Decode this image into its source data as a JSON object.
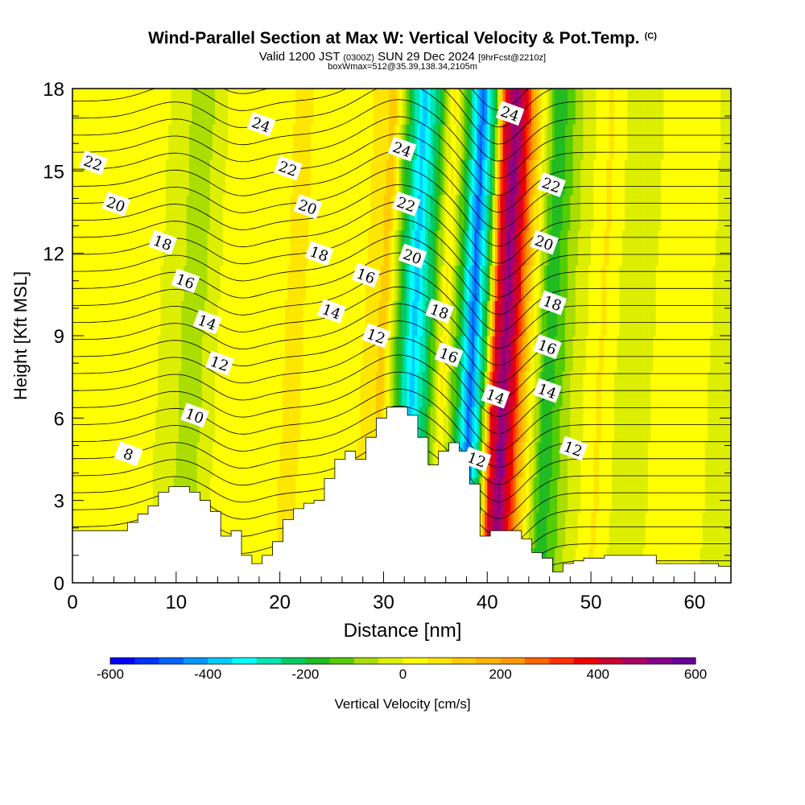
{
  "header": {
    "title": "Wind-Parallel Section at Max W: Vertical Velocity & Pot.Temp.",
    "title_mark": "(C)",
    "valid_prefix": "Valid 1200 JST",
    "valid_zulu": "(0300Z)",
    "valid_date": "SUN 29 Dec 2024",
    "valid_fcst": "[9hrFcst@2210z]",
    "box_info": "boxWmax=512@35.39,138.34,2105m"
  },
  "chart_data": {
    "type": "heatmap",
    "xlabel": "Distance [nm]",
    "ylabel": "Height [Kft MSL]",
    "xlim": [
      0,
      63.5
    ],
    "ylim": [
      0,
      18
    ],
    "x_ticks": [
      "0",
      "10",
      "20",
      "30",
      "40",
      "50",
      "60"
    ],
    "x_tick_values": [
      0,
      10,
      20,
      30,
      40,
      50,
      60
    ],
    "y_ticks": [
      "0",
      "3",
      "6",
      "9",
      "12",
      "15",
      "18"
    ],
    "y_tick_values": [
      0,
      3,
      6,
      9,
      12,
      15,
      18
    ],
    "colorbar": {
      "label": "Vertical Velocity [cm/s]",
      "min": -600,
      "max": 600,
      "tick_labels": [
        "-600",
        "-400",
        "-200",
        "0",
        "200",
        "400",
        "600"
      ],
      "tick_values": [
        -600,
        -400,
        -200,
        0,
        200,
        400,
        600
      ],
      "colors": [
        "#0000ff",
        "#0033ff",
        "#0066ff",
        "#0099ff",
        "#00ccff",
        "#00ffff",
        "#00e5b3",
        "#00cc66",
        "#22bb22",
        "#55cc00",
        "#aadd00",
        "#ddee00",
        "#ffff00",
        "#ffe600",
        "#ffcc00",
        "#ffb300",
        "#ff9900",
        "#ff6600",
        "#ff3300",
        "#ee0000",
        "#cc0033",
        "#aa0066",
        "#880088",
        "#660099"
      ]
    },
    "vertical_velocity_bands": [
      {
        "x": 2,
        "w": 0
      },
      {
        "x": 6.5,
        "w": 30
      },
      {
        "x": 11.2,
        "w": -80
      },
      {
        "x": 14,
        "w": 20
      },
      {
        "x": 17,
        "w": 0
      },
      {
        "x": 20.5,
        "w": 60
      },
      {
        "x": 24,
        "w": 30
      },
      {
        "x": 27.5,
        "w": 50
      },
      {
        "x": 29.5,
        "w": 120
      },
      {
        "x": 30.8,
        "w": -150
      },
      {
        "x": 32.3,
        "w": -380
      },
      {
        "x": 33.8,
        "w": -200
      },
      {
        "x": 35.3,
        "w": 60
      },
      {
        "x": 36.8,
        "w": -200
      },
      {
        "x": 38,
        "w": -480
      },
      {
        "x": 39.3,
        "w": -150
      },
      {
        "x": 40.2,
        "w": 380
      },
      {
        "x": 41.2,
        "w": 520
      },
      {
        "x": 42.2,
        "w": 380
      },
      {
        "x": 43.3,
        "w": 120
      },
      {
        "x": 45.3,
        "w": -200
      },
      {
        "x": 47.5,
        "w": -60
      },
      {
        "x": 50.5,
        "w": 60
      },
      {
        "x": 53,
        "w": -40
      },
      {
        "x": 55.5,
        "w": 0
      },
      {
        "x": 58,
        "w": 30
      },
      {
        "x": 61,
        "w": 0
      },
      {
        "x": 63.5,
        "w": -20
      }
    ],
    "terrain": {
      "x": [
        0,
        5.3,
        6.3,
        7.3,
        8.3,
        9.3,
        10.3,
        11.3,
        12.3,
        13.3,
        14.3,
        15.3,
        16.3,
        17.3,
        18.3,
        19.3,
        20.3,
        21.3,
        22.3,
        23.3,
        24.3,
        25.3,
        26.3,
        27.3,
        28.3,
        29.3,
        30.3,
        31.3,
        32.3,
        33.3,
        34.3,
        35.3,
        36.3,
        37.3,
        38.3,
        39.3,
        40.3,
        41.3,
        42.3,
        43.3,
        44.3,
        45.3,
        46.3,
        47.3,
        48.3,
        49.3,
        50.3,
        51.3,
        52.3,
        53.3,
        54.3,
        55.3,
        56.3,
        57.3,
        58.3,
        59.3,
        60.3,
        61.3,
        62.3,
        63.5
      ],
      "h": [
        1.9,
        2.2,
        2.5,
        2.8,
        3.3,
        3.5,
        3.5,
        3.3,
        3.0,
        2.6,
        1.7,
        1.9,
        1.0,
        0.7,
        1.0,
        1.5,
        2.3,
        2.7,
        2.9,
        3.0,
        3.8,
        4.5,
        4.8,
        4.5,
        5.3,
        6.0,
        6.4,
        6.4,
        6.1,
        5.3,
        4.3,
        4.8,
        5.1,
        4.8,
        3.6,
        1.7,
        1.9,
        1.9,
        1.9,
        1.6,
        1.1,
        0.9,
        0.4,
        0.7,
        0.8,
        0.9,
        0.9,
        1.0,
        1.0,
        1.0,
        1.0,
        1.0,
        0.7,
        0.7,
        0.7,
        0.7,
        0.7,
        0.7,
        0.6,
        0.3
      ]
    },
    "theta_labels": [
      {
        "text": "8",
        "x": 5.4,
        "y": 4.7
      },
      {
        "text": "10",
        "x": 11.8,
        "y": 6.1
      },
      {
        "text": "12",
        "x": 14.2,
        "y": 8.0
      },
      {
        "text": "14",
        "x": 13.0,
        "y": 9.5
      },
      {
        "text": "16",
        "x": 10.9,
        "y": 11.0
      },
      {
        "text": "18",
        "x": 8.7,
        "y": 12.4
      },
      {
        "text": "20",
        "x": 4.2,
        "y": 13.8
      },
      {
        "text": "22",
        "x": 2.0,
        "y": 15.3
      },
      {
        "text": "24",
        "x": 18.2,
        "y": 16.7
      },
      {
        "text": "22",
        "x": 20.8,
        "y": 15.1
      },
      {
        "text": "20",
        "x": 22.7,
        "y": 13.7
      },
      {
        "text": "18",
        "x": 23.8,
        "y": 12.0
      },
      {
        "text": "16",
        "x": 28.3,
        "y": 11.2
      },
      {
        "text": "14",
        "x": 25.0,
        "y": 9.9
      },
      {
        "text": "12",
        "x": 29.3,
        "y": 9.0
      },
      {
        "text": "24",
        "x": 31.8,
        "y": 15.8
      },
      {
        "text": "22",
        "x": 32.2,
        "y": 13.8
      },
      {
        "text": "20",
        "x": 32.8,
        "y": 11.9
      },
      {
        "text": "18",
        "x": 35.4,
        "y": 9.9
      },
      {
        "text": "16",
        "x": 36.3,
        "y": 8.3
      },
      {
        "text": "14",
        "x": 40.8,
        "y": 6.8
      },
      {
        "text": "12",
        "x": 39.0,
        "y": 4.5
      },
      {
        "text": "24",
        "x": 42.2,
        "y": 17.1
      },
      {
        "text": "22",
        "x": 46.2,
        "y": 14.5
      },
      {
        "text": "20",
        "x": 45.5,
        "y": 12.4
      },
      {
        "text": "18",
        "x": 46.3,
        "y": 10.2
      },
      {
        "text": "16",
        "x": 45.8,
        "y": 8.6
      },
      {
        "text": "14",
        "x": 45.8,
        "y": 7.0
      },
      {
        "text": "12",
        "x": 48.3,
        "y": 4.9
      }
    ]
  }
}
